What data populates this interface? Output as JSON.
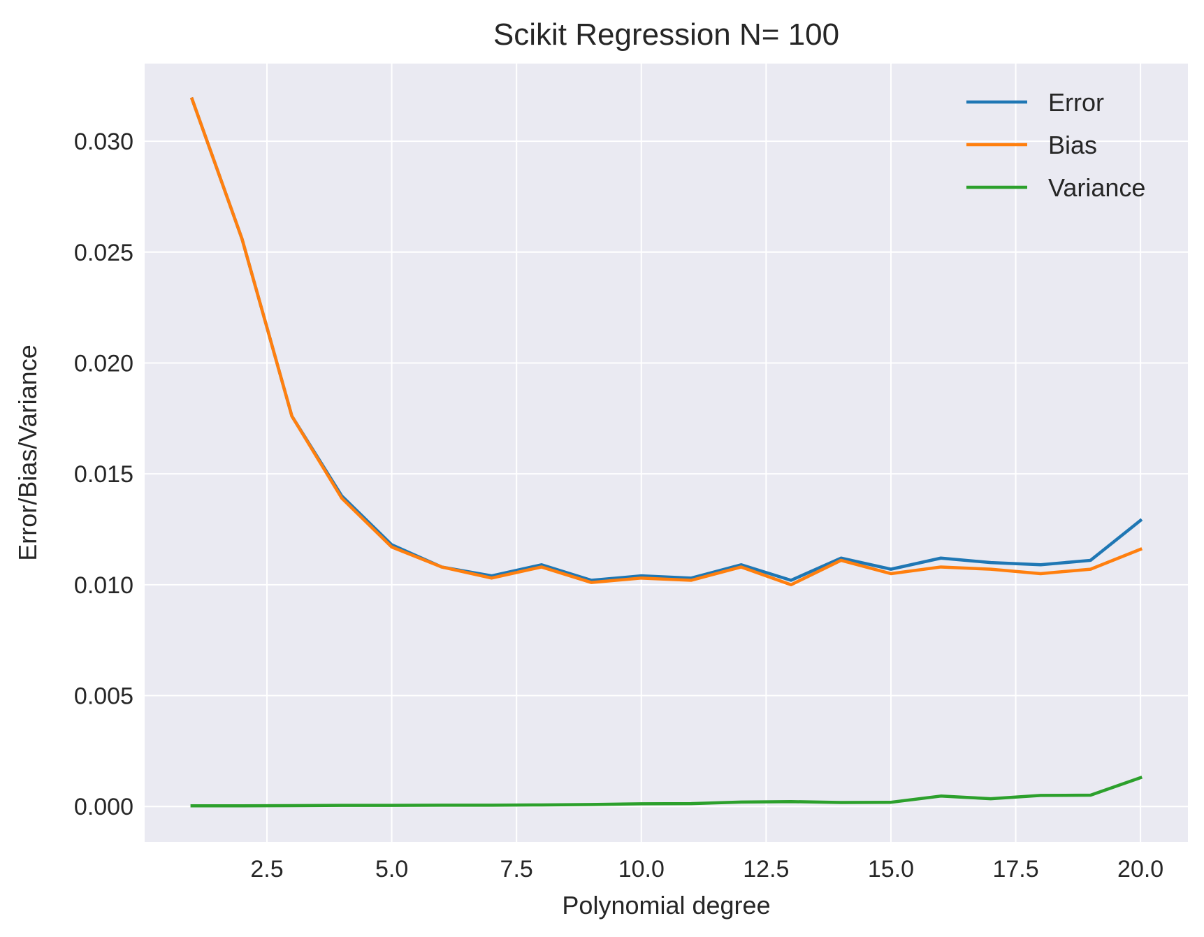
{
  "chart_data": {
    "type": "line",
    "title": "Scikit Regression N= 100",
    "xlabel": "Polynomial degree",
    "ylabel": "Error/Bias/Variance",
    "x": [
      1,
      2,
      3,
      4,
      5,
      6,
      7,
      8,
      9,
      10,
      11,
      12,
      13,
      14,
      15,
      16,
      17,
      18,
      19,
      20
    ],
    "xlim": [
      0.05,
      20.95
    ],
    "ylim": [
      -0.0016,
      0.0335
    ],
    "xticks": [
      2.5,
      5.0,
      7.5,
      10.0,
      12.5,
      15.0,
      17.5,
      20.0
    ],
    "xtick_labels": [
      "2.5",
      "5.0",
      "7.5",
      "10.0",
      "12.5",
      "15.0",
      "17.5",
      "20.0"
    ],
    "yticks": [
      0.0,
      0.005,
      0.01,
      0.015,
      0.02,
      0.025,
      0.03
    ],
    "ytick_labels": [
      "0.000",
      "0.005",
      "0.010",
      "0.015",
      "0.020",
      "0.025",
      "0.030"
    ],
    "grid": true,
    "legend_position": "top-right",
    "background_color": "#EAEAF2",
    "grid_color": "#FFFFFF",
    "series": [
      {
        "name": "Error",
        "color": "#1F77B4",
        "values": [
          0.0319,
          0.0256,
          0.0176,
          0.014,
          0.0118,
          0.0108,
          0.0104,
          0.0109,
          0.0102,
          0.0104,
          0.0103,
          0.0109,
          0.0102,
          0.0112,
          0.0107,
          0.0112,
          0.011,
          0.0109,
          0.0111,
          0.0129
        ]
      },
      {
        "name": "Bias",
        "color": "#FF7F0E",
        "values": [
          0.0319,
          0.0256,
          0.0176,
          0.0139,
          0.0117,
          0.0108,
          0.0103,
          0.0108,
          0.0101,
          0.0103,
          0.0102,
          0.0108,
          0.01,
          0.0111,
          0.0105,
          0.0108,
          0.0107,
          0.0105,
          0.0107,
          0.0116
        ]
      },
      {
        "name": "Variance",
        "color": "#2CA02C",
        "values": [
          3e-05,
          3e-05,
          4e-05,
          5e-05,
          5e-05,
          6e-05,
          6e-05,
          7e-05,
          9e-05,
          0.00012,
          0.00013,
          0.0002,
          0.00022,
          0.00018,
          0.00019,
          0.00047,
          0.00035,
          0.0005,
          0.00051,
          0.0013
        ]
      }
    ]
  }
}
